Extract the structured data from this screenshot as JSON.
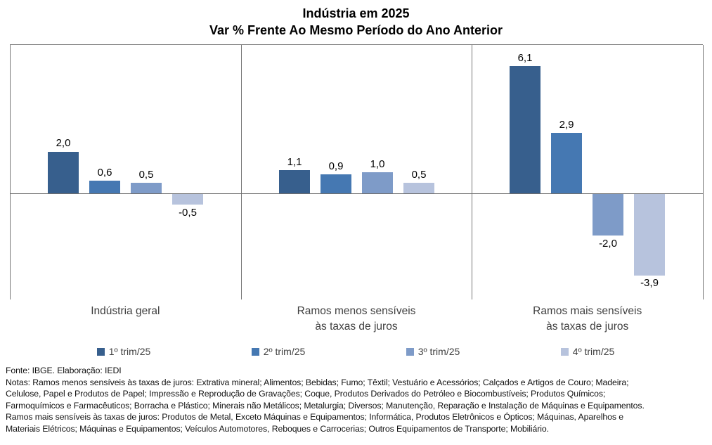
{
  "title": {
    "line1": "Indústria em 2025",
    "line2": "Var % Frente Ao Mesmo Período do Ano Anterior"
  },
  "chart_data": {
    "type": "bar",
    "title": "Indústria em 2025 — Var % Frente Ao Mesmo Período do Ano Anterior",
    "categories": [
      "Indústria geral",
      "Ramos menos sensíveis às taxas de juros",
      "Ramos mais sensíveis às taxas de juros"
    ],
    "category_label_lines": [
      [
        "Indústria geral"
      ],
      [
        "Ramos menos sensíveis",
        "às taxas de juros"
      ],
      [
        "Ramos mais sensíveis",
        "às taxas de juros"
      ]
    ],
    "series": [
      {
        "name": "1º trim/25",
        "color": "#375F8D",
        "values": [
          2.0,
          1.1,
          6.1
        ]
      },
      {
        "name": "2º trim/25",
        "color": "#4578B2",
        "values": [
          0.6,
          0.9,
          2.9
        ]
      },
      {
        "name": "3º trim/25",
        "color": "#7E9BC8",
        "values": [
          0.5,
          1.0,
          -2.0
        ]
      },
      {
        "name": "4º trim/25",
        "color": "#B7C3DD",
        "values": [
          -0.5,
          0.5,
          -3.9
        ]
      }
    ],
    "value_label_format": "comma-decimal-1",
    "ylim": [
      -5.1,
      7.1
    ],
    "grid": false,
    "legend_position": "bottom",
    "axis_line_color": "#777777"
  },
  "footer": {
    "source": "Fonte: IBGE. Elaboração: IEDI",
    "notes_lines": [
      "Notas: Ramos menos sensíveis às taxas de juros: Extrativa mineral; Alimentos; Bebidas; Fumo; Têxtil; Vestuário e Acessórios; Calçados e Artigos de Couro; Madeira;",
      "Celulose, Papel e Produtos de Papel; Impressão e Reprodução de Gravações; Coque, Produtos Derivados do Petróleo e Biocombustíveis; Produtos Químicos;",
      "Farmoquímicos e Farmacêuticos; Borracha e Plástico; Minerais não Metálicos; Metalurgia; Diversos; Manutenção, Reparação e Instalação de Máquinas e Equipamentos.",
      "Ramos mais sensíveis às taxas de juros: Produtos de Metal, Exceto Máquinas e Equipamentos; Informática, Produtos Eletrônicos e Ópticos; Máquinas, Aparelhos e",
      "Materiais Elétricos; Máquinas e Equipamentos; Veículos Automotores, Reboques e Carrocerias; Outros Equipamentos de Transporte; Mobiliário."
    ]
  }
}
